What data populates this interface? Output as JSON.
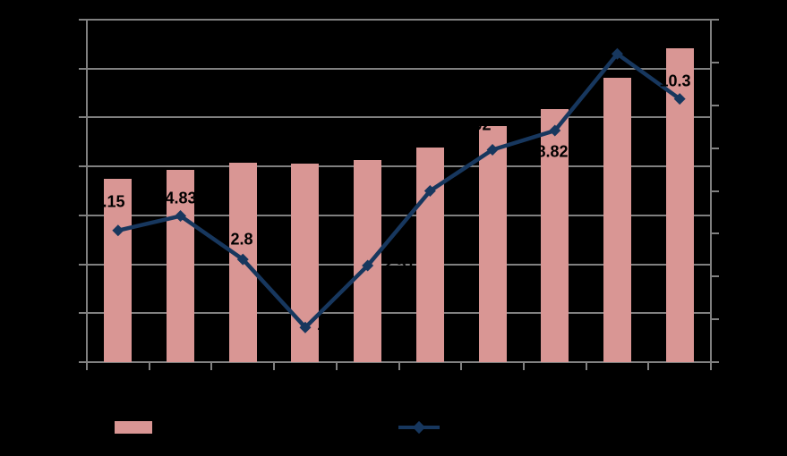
{
  "chart_data": {
    "type": "bar+line",
    "title": "",
    "background": "#000000",
    "categories": [
      "",
      "",
      "",
      "",
      "",
      "",
      "",
      "",
      "",
      ""
    ],
    "series": [
      {
        "name": "",
        "type": "bar",
        "axis": "left",
        "color": "#D99694",
        "values": [
          3.75,
          3.93,
          4.08,
          4.06,
          4.13,
          4.39,
          4.83,
          5.17,
          5.81,
          6.42
        ],
        "values_estimated": true
      },
      {
        "name": "",
        "type": "line",
        "axis": "right",
        "color": "#17375E",
        "marker": "diamond",
        "values": [
          4.15,
          4.83,
          2.8,
          -0.38,
          2.51,
          6.0,
          7.92,
          8.82,
          12.4,
          10.3
        ],
        "data_labels": [
          "4.15",
          "4.83",
          "2.8",
          "-0.38",
          "2.51",
          null,
          "7.92",
          "8.82",
          null,
          "10.3"
        ],
        "data_labels_visible_fragments": [
          ".15",
          "4.83",
          "2.8",
          "8",
          null,
          null,
          "92",
          "8.82",
          null,
          "0.3"
        ]
      }
    ],
    "left_axis": {
      "min": 0,
      "max": 7,
      "gridline_step": 1,
      "tick_labels_visible": false,
      "gridlines": true
    },
    "right_axis": {
      "min": -2,
      "max": 14,
      "tick_step": 2,
      "tick_labels_visible": false,
      "gridlines": false
    },
    "x_axis": {
      "tick_labels_visible": false,
      "category_count": 10
    },
    "legend": {
      "position": "bottom",
      "entries": [
        {
          "marker": "bar-swatch",
          "color": "#D99694",
          "label": ""
        },
        {
          "marker": "line-diamond",
          "color": "#17375E",
          "label": ""
        }
      ]
    },
    "colors": {
      "bar_fill": "#D99694",
      "line_stroke": "#17375E",
      "gridline": "#808080",
      "axis": "#808080",
      "label_text": "#000000"
    }
  }
}
